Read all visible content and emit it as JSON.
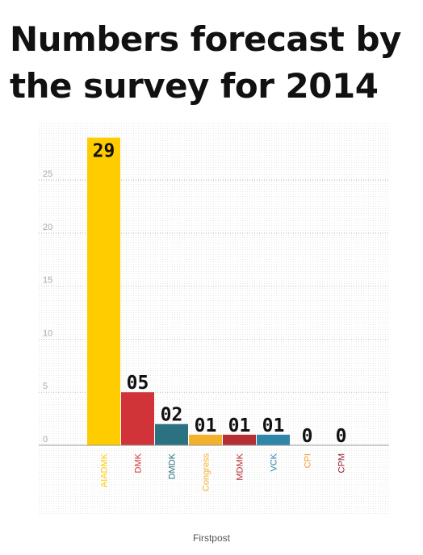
{
  "page": {
    "title": "Numbers forecast by the survey for 2014",
    "source": "Firstpost"
  },
  "chart_data": {
    "type": "bar",
    "title": "Numbers forecast by the survey for 2014",
    "categories": [
      "AIADMK",
      "DMK",
      "DMDK",
      "Congress",
      "MDMK",
      "VCK",
      "CPI",
      "CPM"
    ],
    "values": [
      29,
      5,
      2,
      1,
      1,
      1,
      0,
      0
    ],
    "data_labels": [
      "29",
      "05",
      "02",
      "01",
      "01",
      "01",
      "0",
      "0"
    ],
    "colors": [
      "#ffcc00",
      "#d13438",
      "#2a7282",
      "#f4b12c",
      "#b52f33",
      "#2e86a8",
      "#f4a03a",
      "#9b2335"
    ],
    "yticks": [
      0,
      5,
      10,
      15,
      20,
      25
    ],
    "ylim": [
      0,
      29.5
    ],
    "xlabel": "",
    "ylabel": "",
    "grid": true,
    "tick_color": "#aaaaaa",
    "label_color": "#111111"
  }
}
